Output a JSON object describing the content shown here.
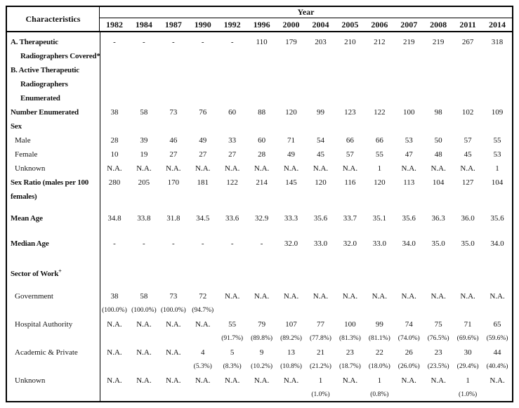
{
  "table": {
    "corner_header": "Characteristics",
    "year_header": "Year",
    "years": [
      "1982",
      "1984",
      "1987",
      "1990",
      "1992",
      "1996",
      "2000",
      "2004",
      "2005",
      "2006",
      "2007",
      "2008",
      "2011",
      "2014"
    ],
    "rows": [
      {
        "name": "a-therapeutic-radiographers-covered",
        "bold": true,
        "spacing": "none",
        "label_lines": [
          {
            "t": "A. Therapeutic",
            "i": 0
          },
          {
            "t": "Radiographers Covered*",
            "i": 2
          }
        ],
        "values": [
          "-",
          "-",
          "-",
          "-",
          "-",
          "110",
          "179",
          "203",
          "210",
          "212",
          "219",
          "219",
          "267",
          "318"
        ],
        "pct": null
      },
      {
        "name": "b-active-therapeutic-radiographers-enumerated",
        "bold": true,
        "spacing": "none",
        "label_lines": [
          {
            "t": "B. Active Therapeutic",
            "i": 0
          },
          {
            "t": "Radiographers",
            "i": 2
          },
          {
            "t": "Enumerated",
            "i": 2
          }
        ],
        "values": null,
        "pct": null
      },
      {
        "name": "number-enumerated",
        "bold": true,
        "spacing": "none",
        "label_lines": [
          {
            "t": "Number Enumerated",
            "i": 0
          }
        ],
        "values": [
          "38",
          "58",
          "73",
          "76",
          "60",
          "88",
          "120",
          "99",
          "123",
          "122",
          "100",
          "98",
          "102",
          "109"
        ],
        "pct": null
      },
      {
        "name": "sex-heading",
        "bold": true,
        "spacing": "none",
        "label_lines": [
          {
            "t": "Sex",
            "i": 0
          }
        ],
        "values": null,
        "pct": null
      },
      {
        "name": "male",
        "bold": false,
        "spacing": "none",
        "label_lines": [
          {
            "t": "Male",
            "i": 1
          }
        ],
        "values": [
          "28",
          "39",
          "46",
          "49",
          "33",
          "60",
          "71",
          "54",
          "66",
          "66",
          "53",
          "50",
          "57",
          "55"
        ],
        "pct": null
      },
      {
        "name": "female",
        "bold": false,
        "spacing": "none",
        "label_lines": [
          {
            "t": "Female",
            "i": 1
          }
        ],
        "values": [
          "10",
          "19",
          "27",
          "27",
          "27",
          "28",
          "49",
          "45",
          "57",
          "55",
          "47",
          "48",
          "45",
          "53"
        ],
        "pct": null
      },
      {
        "name": "sex-unknown",
        "bold": false,
        "spacing": "none",
        "label_lines": [
          {
            "t": "Unknown",
            "i": 1
          }
        ],
        "values": [
          "N.A.",
          "N.A.",
          "N.A.",
          "N.A.",
          "N.A.",
          "N.A.",
          "N.A.",
          "N.A.",
          "N.A.",
          "1",
          "N.A.",
          "N.A.",
          "N.A.",
          "1"
        ],
        "pct": null
      },
      {
        "name": "sex-ratio",
        "bold": true,
        "spacing": "none",
        "label_lines": [
          {
            "t": "Sex Ratio (males per 100",
            "i": 0
          },
          {
            "t": "females)",
            "i": 0
          }
        ],
        "values": [
          "280",
          "205",
          "170",
          "181",
          "122",
          "214",
          "145",
          "120",
          "116",
          "120",
          "113",
          "104",
          "127",
          "104"
        ],
        "pct": null
      },
      {
        "name": "mean-age",
        "bold": true,
        "spacing": "small",
        "label_lines": [
          {
            "t": "Mean Age",
            "i": 0
          }
        ],
        "values": [
          "34.8",
          "33.8",
          "31.8",
          "34.5",
          "33.6",
          "32.9",
          "33.3",
          "35.6",
          "33.7",
          "35.1",
          "35.6",
          "36.3",
          "36.0",
          "35.6"
        ],
        "pct": null
      },
      {
        "name": "median-age",
        "bold": true,
        "spacing": "medium",
        "label_lines": [
          {
            "t": "Median Age",
            "i": 0
          }
        ],
        "values": [
          "-",
          "-",
          "-",
          "-",
          "-",
          "-",
          "32.0",
          "33.0",
          "32.0",
          "33.0",
          "34.0",
          "35.0",
          "35.0",
          "34.0"
        ],
        "pct": null
      },
      {
        "name": "sector-of-work-heading",
        "bold": true,
        "spacing": "xlarge",
        "label_lines": [
          {
            "t": "Sector of Work",
            "i": 0,
            "sup": "+"
          }
        ],
        "values": null,
        "pct": null
      },
      {
        "name": "government",
        "bold": false,
        "spacing": "large",
        "label_lines": [
          {
            "t": "Government",
            "i": 1
          }
        ],
        "values": [
          "38",
          "58",
          "73",
          "72",
          "N.A.",
          "N.A.",
          "N.A.",
          "N.A.",
          "N.A.",
          "N.A.",
          "N.A.",
          "N.A.",
          "N.A.",
          "N.A."
        ],
        "pct": [
          "(100.0%)",
          "(100.0%)",
          "(100.0%)",
          "(94.7%)",
          "",
          "",
          "",
          "",
          "",
          "",
          "",
          "",
          "",
          ""
        ]
      },
      {
        "name": "hospital-authority",
        "bold": false,
        "spacing": "none",
        "label_lines": [
          {
            "t": "Hospital Authority",
            "i": 1
          }
        ],
        "values": [
          "N.A.",
          "N.A.",
          "N.A.",
          "N.A.",
          "55",
          "79",
          "107",
          "77",
          "100",
          "99",
          "74",
          "75",
          "71",
          "65"
        ],
        "pct": [
          "",
          "",
          "",
          "",
          "(91.7%)",
          "(89.8%)",
          "(89.2%)",
          "(77.8%)",
          "(81.3%)",
          "(81.1%)",
          "(74.0%)",
          "(76.5%)",
          "(69.6%)",
          "(59.6%)"
        ]
      },
      {
        "name": "academic-and-private",
        "bold": false,
        "spacing": "none",
        "label_lines": [
          {
            "t": "Academic & Private",
            "i": 1
          }
        ],
        "values": [
          "N.A.",
          "N.A.",
          "N.A.",
          "4",
          "5",
          "9",
          "13",
          "21",
          "23",
          "22",
          "26",
          "23",
          "30",
          "44"
        ],
        "pct": [
          "",
          "",
          "",
          "(5.3%)",
          "(8.3%)",
          "(10.2%)",
          "(10.8%)",
          "(21.2%)",
          "(18.7%)",
          "(18.0%)",
          "(26.0%)",
          "(23.5%)",
          "(29.4%)",
          "(40.4%)"
        ]
      },
      {
        "name": "sector-unknown",
        "bold": false,
        "spacing": "none",
        "label_lines": [
          {
            "t": "Unknown",
            "i": 1
          }
        ],
        "values": [
          "N.A.",
          "N.A.",
          "N.A.",
          "N.A.",
          "N.A.",
          "N.A.",
          "N.A.",
          "1",
          "N.A.",
          "1",
          "N.A.",
          "N.A.",
          "1",
          "N.A."
        ],
        "pct": [
          "",
          "",
          "",
          "",
          "",
          "",
          "",
          "(1.0%)",
          "",
          "(0.8%)",
          "",
          "",
          "(1.0%)",
          ""
        ]
      }
    ]
  }
}
